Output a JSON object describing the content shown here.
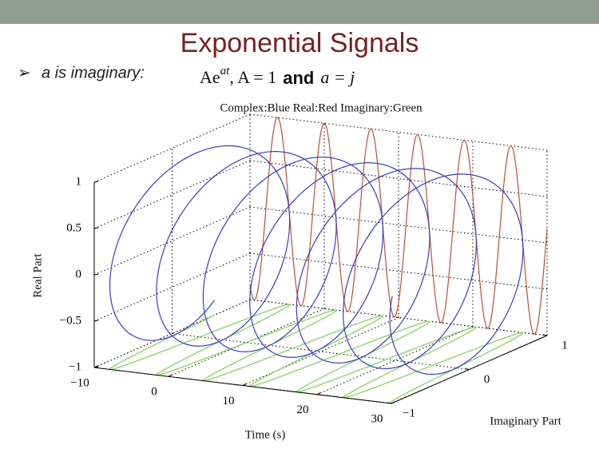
{
  "header": {
    "title": "Exponential Signals"
  },
  "bullet": {
    "label": "a is imaginary:"
  },
  "formula": {
    "base": "Ae",
    "exponent": "at",
    "amplitude": ", A = 1",
    "joiner": "and",
    "condition": "a = j"
  },
  "plot": {
    "title": "Complex:Blue  Real:Red  Imaginary:Green",
    "x_label": "Time (s)",
    "y_label": "Imaginary Part",
    "z_label": "Real Part",
    "x_ticks": [
      {
        "value": -10,
        "label": "−10"
      },
      0,
      10,
      20,
      30
    ],
    "y_ticks": [
      {
        "value": -1,
        "label": "−1"
      },
      0,
      1
    ],
    "z_ticks": [
      {
        "value": -1,
        "label": "−1"
      },
      {
        "value": -0.5,
        "label": "−0.5"
      },
      0,
      0.5,
      1
    ]
  }
}
